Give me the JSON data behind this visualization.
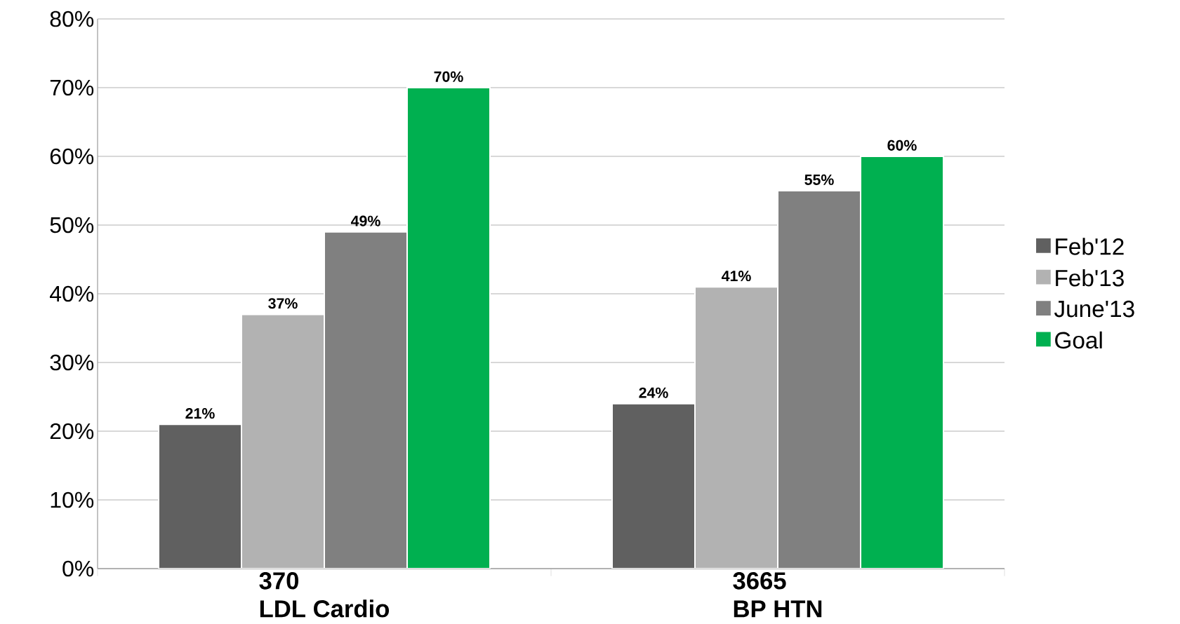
{
  "chart_data": {
    "type": "bar",
    "categories": [
      "LDL Cardio",
      "BP HTN"
    ],
    "annotations": [
      "370",
      "3665"
    ],
    "series": [
      {
        "name": "Feb'12",
        "color": "#606060",
        "values": [
          21,
          24
        ],
        "value_labels": [
          "21%",
          "24%"
        ]
      },
      {
        "name": "Feb'13",
        "color": "#b2b2b2",
        "values": [
          37,
          41
        ],
        "value_labels": [
          "37%",
          "41%"
        ]
      },
      {
        "name": "June'13",
        "color": "#808080",
        "values": [
          49,
          55
        ],
        "value_labels": [
          "49%",
          "55%"
        ]
      },
      {
        "name": "Goal",
        "color": "#00b050",
        "values": [
          70,
          60
        ],
        "value_labels": [
          "70%",
          "60%"
        ]
      }
    ],
    "ylim": [
      0,
      80
    ],
    "yticks": [
      {
        "value": 0,
        "label": "0%"
      },
      {
        "value": 10,
        "label": "10%"
      },
      {
        "value": 20,
        "label": "20%"
      },
      {
        "value": 30,
        "label": "30%"
      },
      {
        "value": 40,
        "label": "40%"
      },
      {
        "value": 50,
        "label": "50%"
      },
      {
        "value": 60,
        "label": "60%"
      },
      {
        "value": 70,
        "label": "70%"
      },
      {
        "value": 80,
        "label": "80%"
      }
    ],
    "grid": "y",
    "legend": "right"
  }
}
